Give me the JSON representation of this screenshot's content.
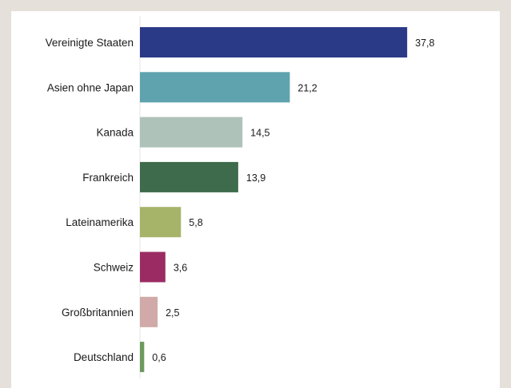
{
  "chart_data": {
    "type": "bar",
    "orientation": "horizontal",
    "categories": [
      "Vereinigte Staaten",
      "Asien ohne Japan",
      "Kanada",
      "Frankreich",
      "Lateinamerika",
      "Schweiz",
      "Großbritannien",
      "Deutschland"
    ],
    "values": [
      37.8,
      21.2,
      14.5,
      13.9,
      5.8,
      3.6,
      2.5,
      0.6
    ],
    "value_labels": [
      "37,8",
      "21,2",
      "14,5",
      "13,9",
      "5,8",
      "3,6",
      "2,5",
      "0,6"
    ],
    "colors": [
      "#2b3a87",
      "#5fa3ae",
      "#afc2ba",
      "#3d6b4b",
      "#a6b46a",
      "#9b2b63",
      "#d1a9a8",
      "#6d9a5c"
    ],
    "xlim": [
      0,
      40
    ],
    "grid": false,
    "legend": "none"
  }
}
